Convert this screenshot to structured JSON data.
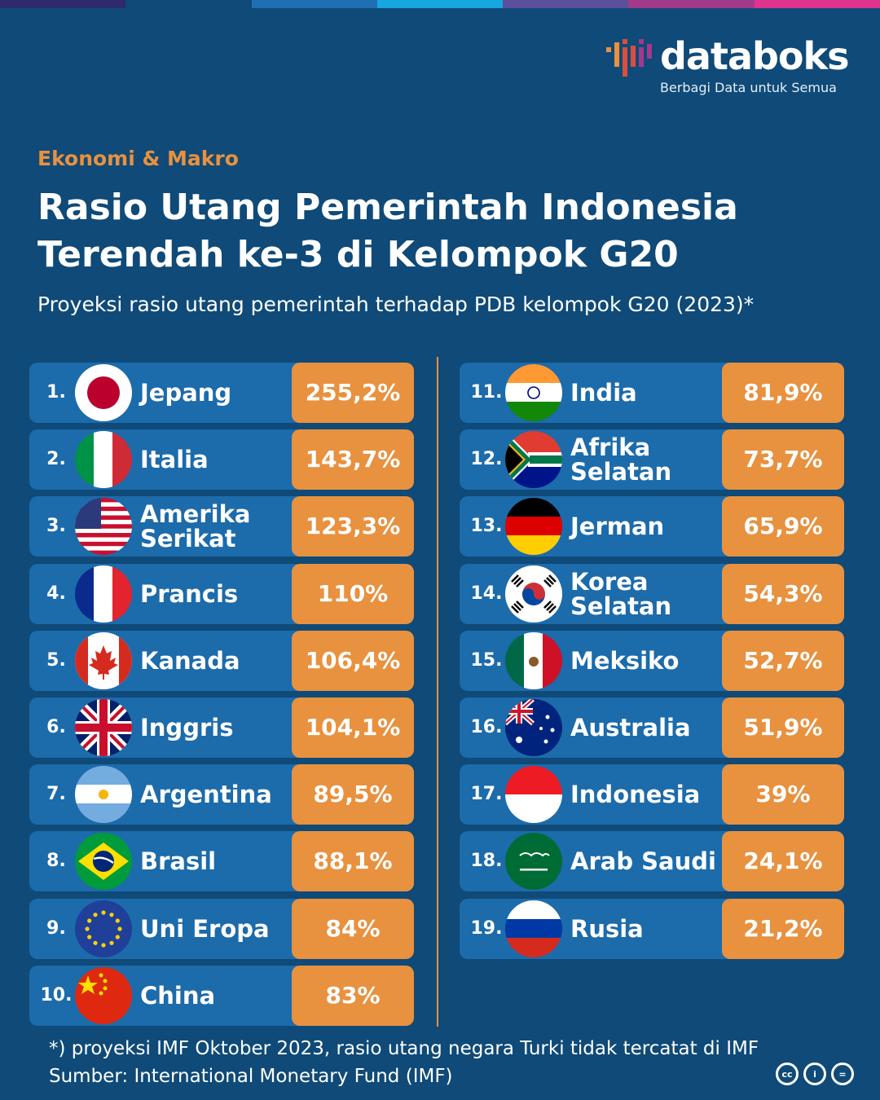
{
  "brand": {
    "name": "databoks",
    "tagline": "Berbagi Data untuk Semua",
    "top_bar_colors": [
      "#2f2a6b",
      "#0f4a78",
      "#1f6fb5",
      "#16a6e0",
      "#5c4f9c",
      "#a23a8c",
      "#e0338e"
    ]
  },
  "header": {
    "category": "Ekonomi & Makro",
    "title": "Rasio Utang Pemerintah Indonesia Terendah ke-3 di Kelompok G20",
    "subtitle": "Proyeksi rasio utang pemerintah terhadap PDB kelompok G20 (2023)*"
  },
  "colors": {
    "background": "#0f4a78",
    "row": "#1c6bab",
    "value_box": "#e8913f",
    "accent": "#e8913f"
  },
  "chart_data": {
    "type": "table",
    "title": "Rasio Utang Pemerintah Indonesia Terendah ke-3 di Kelompok G20",
    "columns": [
      "rank",
      "country",
      "value"
    ],
    "rows": [
      {
        "rank": "1.",
        "country": "Jepang",
        "value": "255,2%",
        "flag": "japan-flag-icon"
      },
      {
        "rank": "2.",
        "country": "Italia",
        "value": "143,7%",
        "flag": "italy-flag-icon"
      },
      {
        "rank": "3.",
        "country": "Amerika Serikat",
        "value": "123,3%",
        "flag": "usa-flag-icon"
      },
      {
        "rank": "4.",
        "country": "Prancis",
        "value": "110%",
        "flag": "france-flag-icon"
      },
      {
        "rank": "5.",
        "country": "Kanada",
        "value": "106,4%",
        "flag": "canada-flag-icon"
      },
      {
        "rank": "6.",
        "country": "Inggris",
        "value": "104,1%",
        "flag": "uk-flag-icon"
      },
      {
        "rank": "7.",
        "country": "Argentina",
        "value": "89,5%",
        "flag": "argentina-flag-icon"
      },
      {
        "rank": "8.",
        "country": "Brasil",
        "value": "88,1%",
        "flag": "brazil-flag-icon"
      },
      {
        "rank": "9.",
        "country": "Uni Eropa",
        "value": "84%",
        "flag": "eu-flag-icon"
      },
      {
        "rank": "10.",
        "country": "China",
        "value": "83%",
        "flag": "china-flag-icon"
      },
      {
        "rank": "11.",
        "country": "India",
        "value": "81,9%",
        "flag": "india-flag-icon"
      },
      {
        "rank": "12.",
        "country": "Afrika Selatan",
        "value": "73,7%",
        "flag": "south-africa-flag-icon"
      },
      {
        "rank": "13.",
        "country": "Jerman",
        "value": "65,9%",
        "flag": "germany-flag-icon"
      },
      {
        "rank": "14.",
        "country": "Korea Selatan",
        "value": "54,3%",
        "flag": "south-korea-flag-icon"
      },
      {
        "rank": "15.",
        "country": "Meksiko",
        "value": "52,7%",
        "flag": "mexico-flag-icon"
      },
      {
        "rank": "16.",
        "country": "Australia",
        "value": "51,9%",
        "flag": "australia-flag-icon"
      },
      {
        "rank": "17.",
        "country": "Indonesia",
        "value": "39%",
        "flag": "indonesia-flag-icon"
      },
      {
        "rank": "18.",
        "country": "Arab Saudi",
        "value": "24,1%",
        "flag": "saudi-arabia-flag-icon"
      },
      {
        "rank": "19.",
        "country": "Rusia",
        "value": "21,2%",
        "flag": "russia-flag-icon"
      }
    ]
  },
  "footer": {
    "note": "*) proyeksi IMF Oktober 2023, rasio utang negara Turki tidak tercatat di IMF",
    "source": "Sumber: International Monetary Fund (IMF)",
    "license_icons": [
      "cc-icon",
      "by-icon",
      "nd-icon"
    ]
  }
}
